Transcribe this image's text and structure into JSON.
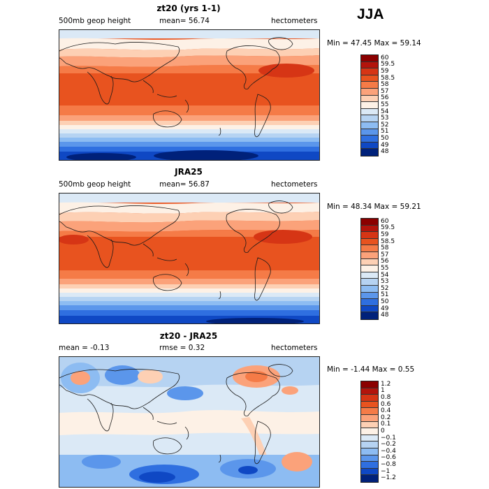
{
  "season": "JJA",
  "chart_data": [
    {
      "type": "heatmap",
      "title": "zt20 (yrs 1-1)",
      "left_label": "500mb geop height",
      "stat_label": "mean=  56.74",
      "units": "hectometers",
      "minmax": "Min =  47.45 Max =  59.14",
      "min": 47.45,
      "max": 59.14,
      "mean": 56.74,
      "levels": [
        "60",
        "59.5",
        "59",
        "58.5",
        "58",
        "57",
        "56",
        "55",
        "54",
        "53",
        "52",
        "51",
        "50",
        "49",
        "48"
      ],
      "colors": [
        "#8b0000",
        "#b3140c",
        "#d63515",
        "#e8531f",
        "#f57b47",
        "#fba27a",
        "#fdd0b4",
        "#fdf1e6",
        "#dbe9f6",
        "#b6d3f2",
        "#8dbcf2",
        "#5b96eb",
        "#2f6fe0",
        "#0f48c4",
        "#00217a"
      ]
    },
    {
      "type": "heatmap",
      "title": "JRA25",
      "left_label": "500mb geop height",
      "stat_label": "mean=  56.87",
      "units": "hectometers",
      "minmax": "Min =  48.34 Max =  59.21",
      "min": 48.34,
      "max": 59.21,
      "mean": 56.87,
      "levels": [
        "60",
        "59.5",
        "59",
        "58.5",
        "58",
        "57",
        "56",
        "55",
        "54",
        "53",
        "52",
        "51",
        "50",
        "49",
        "48"
      ],
      "colors": [
        "#8b0000",
        "#b3140c",
        "#d63515",
        "#e8531f",
        "#f57b47",
        "#fba27a",
        "#fdd0b4",
        "#fdf1e6",
        "#dbe9f6",
        "#b6d3f2",
        "#8dbcf2",
        "#5b96eb",
        "#2f6fe0",
        "#0f48c4",
        "#00217a"
      ]
    },
    {
      "type": "heatmap",
      "title": "zt20 - JRA25",
      "left_label": "mean =  -0.13",
      "stat_label": "rmse =   0.32",
      "units": "hectometers",
      "minmax": "Min =  -1.44 Max =   0.55",
      "min": -1.44,
      "max": 0.55,
      "mean": -0.13,
      "rmse": 0.32,
      "levels": [
        "1.2",
        "1",
        "0.8",
        "0.6",
        "0.4",
        "0.2",
        "0.1",
        "0",
        "−0.1",
        "−0.2",
        "−0.4",
        "−0.6",
        "−0.8",
        "−1",
        "−1.2"
      ],
      "colors": [
        "#8b0000",
        "#b3140c",
        "#d63515",
        "#e8531f",
        "#f57b47",
        "#fba27a",
        "#fdd0b4",
        "#fdf1e6",
        "#dbe9f6",
        "#b6d3f2",
        "#8dbcf2",
        "#5b96eb",
        "#2f6fe0",
        "#0f48c4",
        "#00217a"
      ]
    }
  ]
}
